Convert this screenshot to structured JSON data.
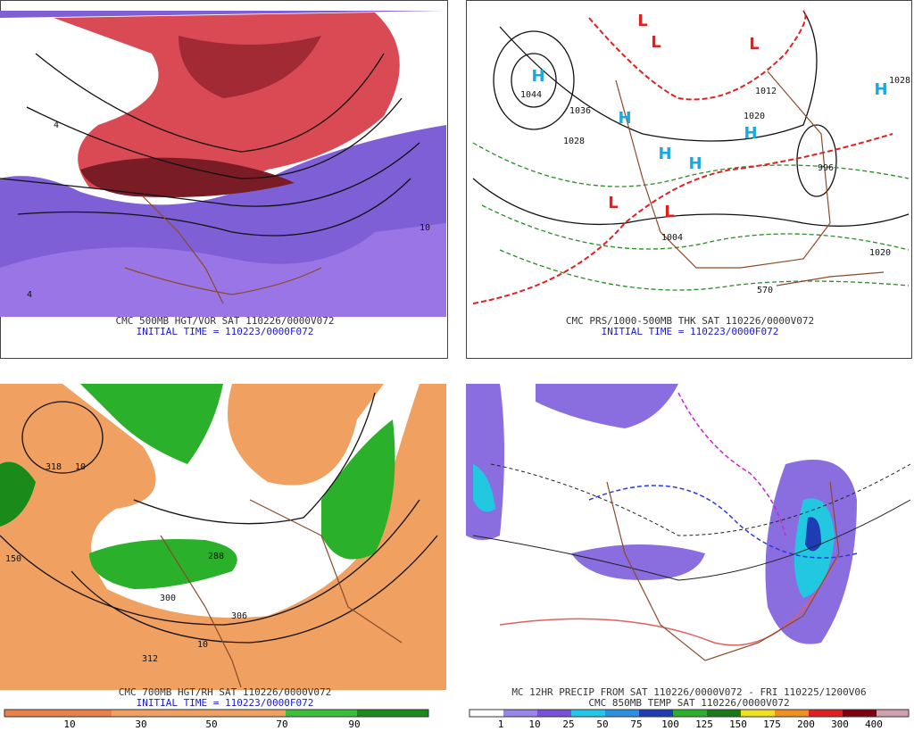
{
  "panels": [
    {
      "caption": [
        "CMC 500MB HGT/VOR SAT 110226/0000V072",
        "INITIAL TIME = 110223/0000F072"
      ],
      "labels": [
        "4",
        "10",
        "4"
      ]
    },
    {
      "caption": [
        "CMC PRS/1000-500MB THK SAT 110226/0000V072",
        "INITIAL TIME = 110223/0000F072"
      ],
      "labels": [
        "H",
        "1044",
        "H",
        "H",
        "H",
        "H",
        "H",
        "L",
        "L",
        "L",
        "L",
        "L",
        "1036",
        "1028",
        "1020",
        "1012",
        "1004",
        "996",
        "1020",
        "570",
        "1028"
      ]
    },
    {
      "caption": [
        "CMC 700MB HGT/RH SAT 110226/0000V072",
        "INITIAL TIME = 110223/0000F072"
      ],
      "labels": [
        "318",
        "10",
        "288",
        "300",
        "306",
        "312",
        "10",
        "150"
      ],
      "colorbar": [
        "10",
        "30",
        "50",
        "70",
        "90"
      ]
    },
    {
      "caption": [
        "MC 12HR PRECIP FROM SAT 110226/0000V072 - FRI 110225/1200V06",
        "CMC 850MB TEMP SAT 110226/0000V072"
      ],
      "colorbar": [
        "1",
        "10",
        "25",
        "50",
        "75",
        "100",
        "125",
        "150",
        "175",
        "200",
        "300",
        "400"
      ]
    }
  ]
}
